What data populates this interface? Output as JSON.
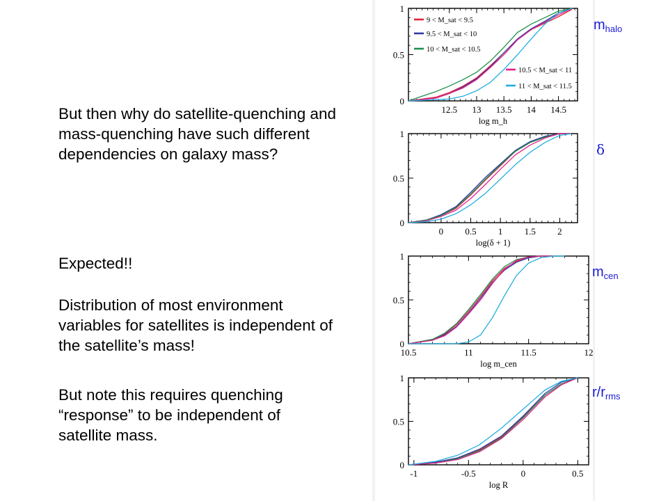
{
  "text": {
    "p1": "But then why do satellite-quenching and  mass-quenching have such different dependencies on galaxy mass?",
    "p2": "Expected!!",
    "p3": "Distribution of most environment variables for satellites is independent of the satellite’s mass!",
    "p4": "But note this requires quenching “response”  to be independent of satellite mass."
  },
  "side_labels": [
    {
      "main": "m",
      "sub": "halo"
    },
    {
      "main": "δ",
      "sub": ""
    },
    {
      "main": "m",
      "sub": "cen"
    },
    {
      "main": "r/r",
      "sub": "rms"
    }
  ],
  "colors": {
    "9-9.5": "#e0243a",
    "9.5-10": "#2f3aa0",
    "10-10.5": "#1f8f4a",
    "10.5-11": "#e0238a",
    "11-11.5": "#22aee0",
    "side_label": "#1a1ad6"
  },
  "chart_data": [
    {
      "type": "line",
      "xlabel": "log m_h",
      "xlim": [
        11.75,
        14.85
      ],
      "ylim": [
        0,
        1
      ],
      "xticks": [
        12.5,
        13,
        13.5,
        14,
        14.5
      ],
      "yticks": [
        0,
        0.5,
        1
      ],
      "xtick_labels": [
        "12.5",
        "13",
        "13.5",
        "14",
        "14.5"
      ],
      "ytick_labels": [
        "0",
        "0.5",
        "1"
      ],
      "legend": "split",
      "series": [
        {
          "name": "9 < M_sat < 9.5",
          "color_key": "9-9.5",
          "x": [
            11.75,
            12.25,
            12.5,
            12.75,
            13,
            13.25,
            13.5,
            13.75,
            14,
            14.25,
            14.5,
            14.75
          ],
          "y": [
            0,
            0.04,
            0.09,
            0.16,
            0.25,
            0.38,
            0.52,
            0.67,
            0.77,
            0.84,
            0.91,
            0.99
          ]
        },
        {
          "name": "9.5 < M_sat < 10",
          "color_key": "9.5-10",
          "x": [
            11.75,
            12.25,
            12.5,
            12.75,
            13,
            13.25,
            13.5,
            13.75,
            14,
            14.25,
            14.5,
            14.75
          ],
          "y": [
            0,
            0.03,
            0.08,
            0.15,
            0.24,
            0.37,
            0.52,
            0.67,
            0.78,
            0.86,
            0.95,
            1
          ]
        },
        {
          "name": "10 < M_sat < 10.5",
          "color_key": "10-10.5",
          "x": [
            11.75,
            12,
            12.25,
            12.5,
            12.75,
            13,
            13.25,
            13.5,
            13.75,
            14,
            14.25,
            14.5,
            14.75
          ],
          "y": [
            0,
            0.05,
            0.1,
            0.16,
            0.23,
            0.31,
            0.43,
            0.58,
            0.74,
            0.83,
            0.9,
            0.97,
            1
          ]
        },
        {
          "name": "10.5 < M_sat < 11",
          "color_key": "10.5-11",
          "x": [
            11.75,
            12.25,
            12.5,
            12.75,
            13,
            13.25,
            13.5,
            13.75,
            14,
            14.25,
            14.5,
            14.75
          ],
          "y": [
            0,
            0.03,
            0.08,
            0.14,
            0.23,
            0.36,
            0.5,
            0.66,
            0.77,
            0.85,
            0.93,
            1
          ]
        },
        {
          "name": "11 < M_sat < 11.5",
          "color_key": "11-11.5",
          "x": [
            11.75,
            12.5,
            12.75,
            13,
            13.25,
            13.5,
            13.75,
            14,
            14.25,
            14.5,
            14.75
          ],
          "y": [
            0,
            0.02,
            0.05,
            0.11,
            0.2,
            0.34,
            0.5,
            0.67,
            0.83,
            0.95,
            1
          ]
        }
      ]
    },
    {
      "type": "line",
      "xlabel": "log(δ + 1)",
      "xlim": [
        -0.55,
        2.3
      ],
      "ylim": [
        0,
        1
      ],
      "xticks": [
        0,
        0.5,
        1,
        1.5,
        2
      ],
      "yticks": [
        0,
        0.5,
        1
      ],
      "xtick_labels": [
        "0",
        "0.5",
        "1",
        "1.5",
        "2"
      ],
      "ytick_labels": [
        "0",
        "0.5",
        "1"
      ],
      "series": [
        {
          "color_key": "9-9.5",
          "x": [
            -0.55,
            -0.25,
            0,
            0.25,
            0.5,
            0.75,
            1,
            1.25,
            1.5,
            1.75,
            2,
            2.2
          ],
          "y": [
            0,
            0.03,
            0.08,
            0.16,
            0.31,
            0.48,
            0.64,
            0.8,
            0.9,
            0.96,
            1,
            1
          ]
        },
        {
          "color_key": "9.5-10",
          "x": [
            -0.55,
            -0.25,
            0,
            0.25,
            0.5,
            0.75,
            1,
            1.25,
            1.5,
            1.75,
            2,
            2.2
          ],
          "y": [
            0,
            0.03,
            0.09,
            0.18,
            0.34,
            0.51,
            0.66,
            0.81,
            0.91,
            0.97,
            1,
            1
          ]
        },
        {
          "color_key": "10-10.5",
          "x": [
            -0.55,
            -0.25,
            0,
            0.25,
            0.5,
            0.75,
            1,
            1.25,
            1.5,
            1.75,
            2,
            2.2
          ],
          "y": [
            0,
            0.03,
            0.08,
            0.17,
            0.32,
            0.49,
            0.65,
            0.8,
            0.9,
            0.96,
            1,
            1
          ]
        },
        {
          "color_key": "10.5-11",
          "x": [
            -0.55,
            -0.25,
            0,
            0.25,
            0.5,
            0.75,
            1,
            1.25,
            1.5,
            1.75,
            2,
            2.2
          ],
          "y": [
            0,
            0.02,
            0.07,
            0.14,
            0.27,
            0.43,
            0.6,
            0.76,
            0.87,
            0.95,
            1,
            1
          ]
        },
        {
          "color_key": "11-11.5",
          "x": [
            -0.55,
            -0.25,
            0,
            0.25,
            0.5,
            0.75,
            1,
            1.25,
            1.5,
            1.75,
            2,
            2.2
          ],
          "y": [
            0,
            0.01,
            0.04,
            0.1,
            0.2,
            0.33,
            0.49,
            0.65,
            0.79,
            0.9,
            0.98,
            1
          ]
        }
      ]
    },
    {
      "type": "line",
      "xlabel": "log m_cen",
      "xlim": [
        10.5,
        12
      ],
      "ylim": [
        0,
        1
      ],
      "xticks": [
        10.5,
        11,
        11.5,
        12
      ],
      "yticks": [
        0,
        0.5,
        1
      ],
      "xtick_labels": [
        "10.5",
        "11",
        "11.5",
        "12"
      ],
      "ytick_labels": [
        "0",
        "0.5",
        "1"
      ],
      "series": [
        {
          "color_key": "9-9.5",
          "x": [
            10.5,
            10.7,
            10.8,
            10.9,
            11,
            11.1,
            11.2,
            11.3,
            11.4,
            11.5,
            11.6,
            11.7
          ],
          "y": [
            0,
            0.05,
            0.11,
            0.22,
            0.37,
            0.54,
            0.72,
            0.86,
            0.94,
            0.98,
            1,
            1
          ]
        },
        {
          "color_key": "9.5-10",
          "x": [
            10.5,
            10.7,
            10.8,
            10.9,
            11,
            11.1,
            11.2,
            11.3,
            11.4,
            11.5,
            11.6,
            11.7
          ],
          "y": [
            0,
            0.04,
            0.1,
            0.2,
            0.35,
            0.52,
            0.7,
            0.84,
            0.93,
            0.98,
            1,
            1
          ]
        },
        {
          "color_key": "10-10.5",
          "x": [
            10.5,
            10.7,
            10.8,
            10.9,
            11,
            11.1,
            11.2,
            11.3,
            11.4,
            11.5,
            11.6,
            11.7
          ],
          "y": [
            0,
            0.05,
            0.12,
            0.23,
            0.39,
            0.56,
            0.74,
            0.88,
            0.96,
            0.99,
            1,
            1
          ]
        },
        {
          "color_key": "10.5-11",
          "x": [
            10.5,
            10.7,
            10.8,
            10.9,
            11,
            11.1,
            11.2,
            11.3,
            11.4,
            11.5,
            11.6,
            11.7
          ],
          "y": [
            0,
            0.04,
            0.09,
            0.19,
            0.34,
            0.5,
            0.69,
            0.85,
            0.95,
            0.99,
            1,
            1
          ]
        },
        {
          "color_key": "11-11.5",
          "x": [
            10.5,
            10.9,
            11,
            11.1,
            11.2,
            11.3,
            11.4,
            11.5,
            11.6,
            11.7,
            11.8
          ],
          "y": [
            0,
            0,
            0.02,
            0.1,
            0.3,
            0.55,
            0.78,
            0.92,
            0.98,
            1,
            1
          ]
        }
      ]
    },
    {
      "type": "line",
      "xlabel": "log R",
      "xlim": [
        -1.05,
        0.6
      ],
      "ylim": [
        0,
        1
      ],
      "xticks": [
        -1,
        -0.5,
        0,
        0.5
      ],
      "yticks": [
        0,
        0.5,
        1
      ],
      "xtick_labels": [
        "-1",
        "-0.5",
        "0",
        "0.5"
      ],
      "ytick_labels": [
        "0",
        "0.5",
        "1"
      ],
      "series": [
        {
          "color_key": "9-9.5",
          "x": [
            -1.05,
            -0.8,
            -0.6,
            -0.4,
            -0.2,
            0,
            0.2,
            0.35,
            0.5
          ],
          "y": [
            0,
            0.03,
            0.08,
            0.17,
            0.32,
            0.55,
            0.8,
            0.93,
            1
          ]
        },
        {
          "color_key": "9.5-10",
          "x": [
            -1.05,
            -0.8,
            -0.6,
            -0.4,
            -0.2,
            0,
            0.2,
            0.35,
            0.5
          ],
          "y": [
            0,
            0.03,
            0.08,
            0.18,
            0.33,
            0.56,
            0.82,
            0.95,
            1
          ]
        },
        {
          "color_key": "10-10.5",
          "x": [
            -1.05,
            -0.8,
            -0.6,
            -0.4,
            -0.2,
            0,
            0.2,
            0.35,
            0.5
          ],
          "y": [
            0,
            0.02,
            0.07,
            0.16,
            0.31,
            0.54,
            0.8,
            0.93,
            1
          ]
        },
        {
          "color_key": "10.5-11",
          "x": [
            -1.05,
            -0.8,
            -0.6,
            -0.4,
            -0.2,
            0,
            0.2,
            0.35,
            0.5
          ],
          "y": [
            0,
            0.02,
            0.06,
            0.15,
            0.3,
            0.52,
            0.78,
            0.92,
            1
          ]
        },
        {
          "color_key": "11-11.5",
          "x": [
            -1.05,
            -0.8,
            -0.6,
            -0.4,
            -0.2,
            0,
            0.2,
            0.35,
            0.5
          ],
          "y": [
            0,
            0.04,
            0.11,
            0.23,
            0.42,
            0.64,
            0.86,
            0.96,
            1
          ]
        }
      ]
    }
  ]
}
